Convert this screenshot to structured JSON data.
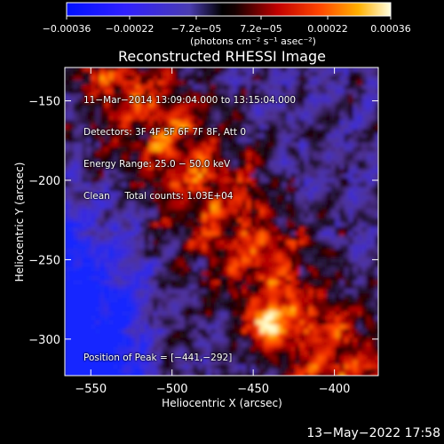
{
  "chart_data": {
    "type": "heatmap",
    "title": "Reconstructed RHESSI Image",
    "xlabel": "Heliocentric X (arcsec)",
    "ylabel": "Heliocentric Y (arcsec)",
    "xlim": [
      -566,
      -373
    ],
    "ylim": [
      -323,
      -129
    ],
    "x_ticks": [
      {
        "value": -550,
        "label": "−550"
      },
      {
        "value": -500,
        "label": "−500"
      },
      {
        "value": -450,
        "label": "−450"
      },
      {
        "value": -400,
        "label": "−400"
      }
    ],
    "y_ticks": [
      {
        "value": -150,
        "label": "−150"
      },
      {
        "value": -200,
        "label": "−200"
      },
      {
        "value": -250,
        "label": "−250"
      },
      {
        "value": -300,
        "label": "−300"
      }
    ],
    "colorbar": {
      "range": [
        -0.00036,
        0.00036
      ],
      "tick_values": [
        -0.00036,
        -0.00022,
        -7.2e-05,
        7.2e-05,
        0.00022,
        0.00036
      ],
      "tick_labels": [
        "−0.00036",
        "−0.00022",
        "−7.2e−05",
        "7.2e−05",
        "0.00022",
        "0.00036"
      ],
      "unit_label": "(photons cm⁻² s⁻¹ asec⁻²)"
    },
    "peak": {
      "x": -441,
      "y": -292
    },
    "annotations": {
      "time_range": "11−Mar−2014 13:09:04.000 to 13:15:04.000",
      "detectors": "Detectors: 3F 4F 5F 6F 7F 8F, Att 0",
      "energy_range": "Energy Range: 25.0 − 50.0 keV",
      "method": "Clean     Total counts: 1.03E+04",
      "peak_label": "Position of Peak = [−441,−292]"
    },
    "grid": false
  },
  "timestamp": "13−May−2022 17:58"
}
